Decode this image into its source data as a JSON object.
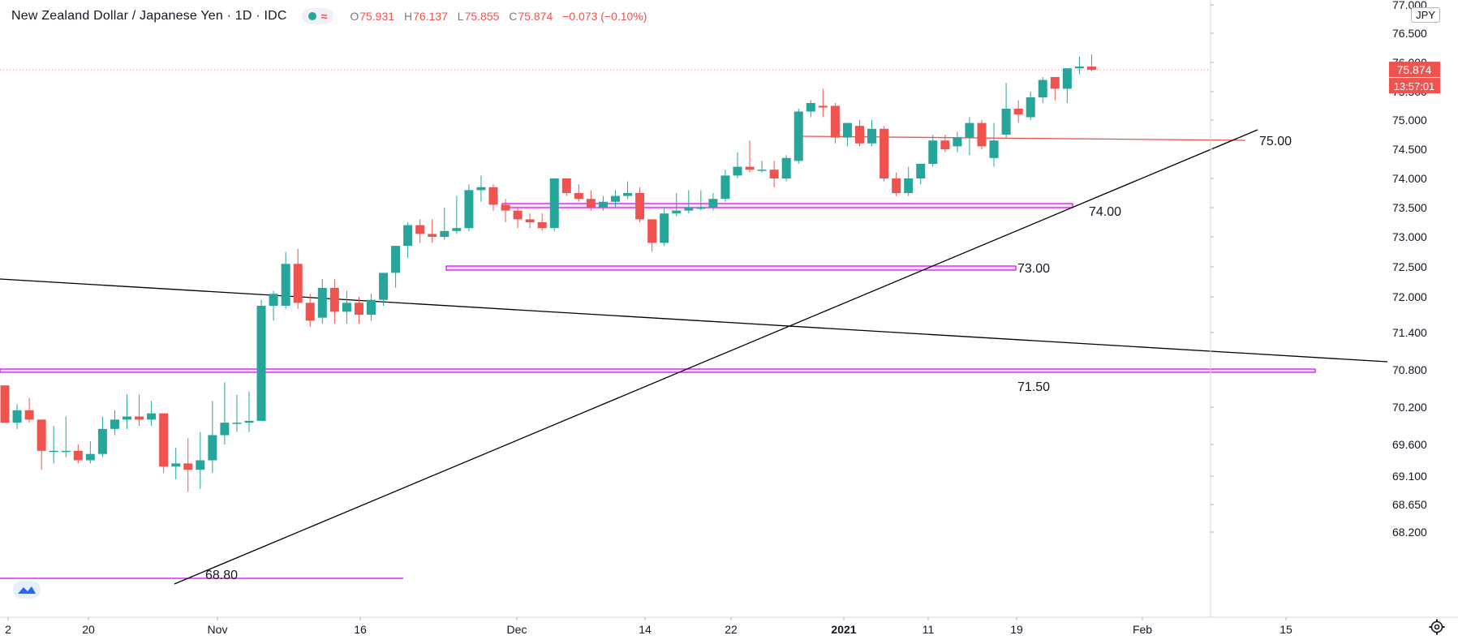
{
  "legend": {
    "symbol": "New Zealand Dollar / Japanese Yen · 1D · IDC",
    "open_label": "O",
    "open": "75.931",
    "high_label": "H",
    "high": "76.137",
    "low_label": "L",
    "low": "75.855",
    "close_label": "C",
    "close": "75.874",
    "change": "−0.073 (−0.10%)",
    "status_icons": [
      "market-open-dot-icon",
      "wave-icon"
    ]
  },
  "currency": "JPY",
  "colors": {
    "up": "#26a69a",
    "down": "#ef5350",
    "zone": "#d500f9",
    "resistance": "#ef5350",
    "trend": "#000000",
    "last_line": "#ef5350"
  },
  "chart_data": {
    "type": "candlestick",
    "title": "New Zealand Dollar / Japanese Yen · 1D · IDC",
    "y_axis": {
      "side": "right",
      "ticks": [
        "77.000",
        "76.500",
        "76.000",
        "75.500",
        "75.000",
        "74.500",
        "74.000",
        "73.500",
        "73.000",
        "72.500",
        "72.000",
        "71.400",
        "70.800",
        "70.200",
        "69.600",
        "69.100",
        "68.650",
        "68.200"
      ]
    },
    "x_axis": {
      "ticks": [
        "2",
        "20",
        "Nov",
        "16",
        "Dec",
        "14",
        "22",
        "2021",
        "11",
        "19",
        "Feb",
        "15"
      ],
      "bold": [
        "2021"
      ]
    },
    "price_labels": {
      "last": "75.874",
      "countdown": "13:57:01"
    },
    "candles": [
      {
        "o": 70.55,
        "h": 70.55,
        "l": 69.95,
        "c": 69.95
      },
      {
        "o": 69.95,
        "h": 70.25,
        "l": 69.85,
        "c": 70.15
      },
      {
        "o": 70.15,
        "h": 70.35,
        "l": 69.95,
        "c": 70.0
      },
      {
        "o": 70.0,
        "h": 70.0,
        "l": 69.2,
        "c": 69.5
      },
      {
        "o": 69.5,
        "h": 69.9,
        "l": 69.3,
        "c": 69.5
      },
      {
        "o": 69.5,
        "h": 70.05,
        "l": 69.4,
        "c": 69.5
      },
      {
        "o": 69.5,
        "h": 69.6,
        "l": 69.3,
        "c": 69.35
      },
      {
        "o": 69.35,
        "h": 69.65,
        "l": 69.3,
        "c": 69.45
      },
      {
        "o": 69.45,
        "h": 70.05,
        "l": 69.4,
        "c": 69.85
      },
      {
        "o": 69.85,
        "h": 70.15,
        "l": 69.75,
        "c": 70.0
      },
      {
        "o": 70.0,
        "h": 70.4,
        "l": 69.85,
        "c": 70.05
      },
      {
        "o": 70.05,
        "h": 70.4,
        "l": 69.9,
        "c": 70.0
      },
      {
        "o": 70.0,
        "h": 70.3,
        "l": 69.9,
        "c": 70.1
      },
      {
        "o": 70.1,
        "h": 70.1,
        "l": 69.15,
        "c": 69.25
      },
      {
        "o": 69.25,
        "h": 69.55,
        "l": 69.05,
        "c": 69.3
      },
      {
        "o": 69.3,
        "h": 69.7,
        "l": 68.85,
        "c": 69.2
      },
      {
        "o": 69.2,
        "h": 69.8,
        "l": 68.9,
        "c": 69.35
      },
      {
        "o": 69.35,
        "h": 70.3,
        "l": 69.15,
        "c": 69.75
      },
      {
        "o": 69.75,
        "h": 70.6,
        "l": 69.6,
        "c": 69.95
      },
      {
        "o": 69.95,
        "h": 70.4,
        "l": 69.8,
        "c": 69.95
      },
      {
        "o": 69.95,
        "h": 70.45,
        "l": 69.8,
        "c": 69.98
      },
      {
        "o": 69.98,
        "h": 71.95,
        "l": 69.98,
        "c": 71.85
      },
      {
        "o": 71.85,
        "h": 72.1,
        "l": 71.6,
        "c": 72.05
      },
      {
        "o": 71.85,
        "h": 72.75,
        "l": 71.8,
        "c": 72.55
      },
      {
        "o": 72.55,
        "h": 72.8,
        "l": 71.8,
        "c": 71.9
      },
      {
        "o": 71.9,
        "h": 72.05,
        "l": 71.5,
        "c": 71.6
      },
      {
        "o": 71.65,
        "h": 72.3,
        "l": 71.55,
        "c": 72.15
      },
      {
        "o": 72.15,
        "h": 72.3,
        "l": 71.55,
        "c": 71.75
      },
      {
        "o": 71.75,
        "h": 72.1,
        "l": 71.55,
        "c": 71.9
      },
      {
        "o": 71.9,
        "h": 72.0,
        "l": 71.55,
        "c": 71.7
      },
      {
        "o": 71.7,
        "h": 72.05,
        "l": 71.6,
        "c": 71.95
      },
      {
        "o": 71.95,
        "h": 72.4,
        "l": 71.85,
        "c": 72.4
      },
      {
        "o": 72.4,
        "h": 72.85,
        "l": 72.15,
        "c": 72.85
      },
      {
        "o": 72.85,
        "h": 73.25,
        "l": 72.65,
        "c": 73.2
      },
      {
        "o": 73.2,
        "h": 73.3,
        "l": 72.9,
        "c": 73.05
      },
      {
        "o": 73.05,
        "h": 73.3,
        "l": 72.9,
        "c": 73.0
      },
      {
        "o": 73.0,
        "h": 73.5,
        "l": 72.95,
        "c": 73.1
      },
      {
        "o": 73.1,
        "h": 73.7,
        "l": 73.05,
        "c": 73.15
      },
      {
        "o": 73.15,
        "h": 73.9,
        "l": 73.1,
        "c": 73.8
      },
      {
        "o": 73.8,
        "h": 74.05,
        "l": 73.6,
        "c": 73.85
      },
      {
        "o": 73.85,
        "h": 73.9,
        "l": 73.45,
        "c": 73.55
      },
      {
        "o": 73.55,
        "h": 73.65,
        "l": 73.25,
        "c": 73.45
      },
      {
        "o": 73.45,
        "h": 73.5,
        "l": 73.15,
        "c": 73.3
      },
      {
        "o": 73.3,
        "h": 73.4,
        "l": 73.15,
        "c": 73.25
      },
      {
        "o": 73.25,
        "h": 73.4,
        "l": 73.1,
        "c": 73.15
      },
      {
        "o": 73.15,
        "h": 74.0,
        "l": 73.1,
        "c": 74.0
      },
      {
        "o": 74.0,
        "h": 74.0,
        "l": 73.7,
        "c": 73.75
      },
      {
        "o": 73.75,
        "h": 73.9,
        "l": 73.6,
        "c": 73.65
      },
      {
        "o": 73.65,
        "h": 73.8,
        "l": 73.45,
        "c": 73.5
      },
      {
        "o": 73.5,
        "h": 73.7,
        "l": 73.45,
        "c": 73.6
      },
      {
        "o": 73.6,
        "h": 73.8,
        "l": 73.5,
        "c": 73.7
      },
      {
        "o": 73.7,
        "h": 73.95,
        "l": 73.65,
        "c": 73.75
      },
      {
        "o": 73.75,
        "h": 73.85,
        "l": 73.25,
        "c": 73.3
      },
      {
        "o": 73.3,
        "h": 73.3,
        "l": 72.75,
        "c": 72.9
      },
      {
        "o": 72.9,
        "h": 73.5,
        "l": 72.85,
        "c": 73.4
      },
      {
        "o": 73.4,
        "h": 73.75,
        "l": 73.35,
        "c": 73.45
      },
      {
        "o": 73.45,
        "h": 73.8,
        "l": 73.4,
        "c": 73.5
      },
      {
        "o": 73.5,
        "h": 73.8,
        "l": 73.45,
        "c": 73.5
      },
      {
        "o": 73.5,
        "h": 73.75,
        "l": 73.45,
        "c": 73.65
      },
      {
        "o": 73.65,
        "h": 74.15,
        "l": 73.6,
        "c": 74.05
      },
      {
        "o": 74.05,
        "h": 74.45,
        "l": 74.0,
        "c": 74.2
      },
      {
        "o": 74.2,
        "h": 74.65,
        "l": 74.1,
        "c": 74.15
      },
      {
        "o": 74.15,
        "h": 74.3,
        "l": 74.1,
        "c": 74.15
      },
      {
        "o": 74.15,
        "h": 74.3,
        "l": 73.85,
        "c": 74.0
      },
      {
        "o": 74.0,
        "h": 74.4,
        "l": 73.95,
        "c": 74.35
      },
      {
        "o": 74.3,
        "h": 75.2,
        "l": 74.25,
        "c": 75.15
      },
      {
        "o": 75.15,
        "h": 75.35,
        "l": 75.05,
        "c": 75.3
      },
      {
        "o": 75.25,
        "h": 75.55,
        "l": 75.05,
        "c": 75.22
      },
      {
        "o": 75.25,
        "h": 75.3,
        "l": 74.6,
        "c": 74.7
      },
      {
        "o": 74.7,
        "h": 74.95,
        "l": 74.55,
        "c": 74.95
      },
      {
        "o": 74.9,
        "h": 75.0,
        "l": 74.55,
        "c": 74.6
      },
      {
        "o": 74.6,
        "h": 75.0,
        "l": 74.55,
        "c": 74.85
      },
      {
        "o": 74.85,
        "h": 74.9,
        "l": 73.95,
        "c": 74.0
      },
      {
        "o": 74.0,
        "h": 74.1,
        "l": 73.7,
        "c": 73.75
      },
      {
        "o": 73.75,
        "h": 74.2,
        "l": 73.7,
        "c": 74.0
      },
      {
        "o": 74.0,
        "h": 74.25,
        "l": 73.9,
        "c": 74.25
      },
      {
        "o": 74.25,
        "h": 74.75,
        "l": 74.2,
        "c": 74.65
      },
      {
        "o": 74.65,
        "h": 74.75,
        "l": 74.45,
        "c": 74.5
      },
      {
        "o": 74.55,
        "h": 74.8,
        "l": 74.45,
        "c": 74.7
      },
      {
        "o": 74.7,
        "h": 75.05,
        "l": 74.4,
        "c": 74.95
      },
      {
        "o": 74.95,
        "h": 75.0,
        "l": 74.5,
        "c": 74.55
      },
      {
        "o": 74.35,
        "h": 74.95,
        "l": 74.2,
        "c": 74.65
      },
      {
        "o": 74.75,
        "h": 75.65,
        "l": 74.7,
        "c": 75.2
      },
      {
        "o": 75.2,
        "h": 75.35,
        "l": 74.95,
        "c": 75.1
      },
      {
        "o": 75.05,
        "h": 75.5,
        "l": 75.0,
        "c": 75.4
      },
      {
        "o": 75.4,
        "h": 75.75,
        "l": 75.3,
        "c": 75.7
      },
      {
        "o": 75.75,
        "h": 75.75,
        "l": 75.35,
        "c": 75.55
      },
      {
        "o": 75.55,
        "h": 75.9,
        "l": 75.3,
        "c": 75.9
      },
      {
        "o": 75.9,
        "h": 76.1,
        "l": 75.8,
        "c": 75.93
      },
      {
        "o": 75.93,
        "h": 76.137,
        "l": 75.855,
        "c": 75.874
      }
    ],
    "annotations": [
      {
        "kind": "zone",
        "label": "74.00"
      },
      {
        "kind": "zone",
        "label": "73.00"
      },
      {
        "kind": "zone",
        "label": "71.50"
      },
      {
        "kind": "line",
        "label": "68.80"
      },
      {
        "kind": "resistance",
        "label": "75.00"
      },
      {
        "kind": "trendline",
        "label": ""
      }
    ]
  }
}
